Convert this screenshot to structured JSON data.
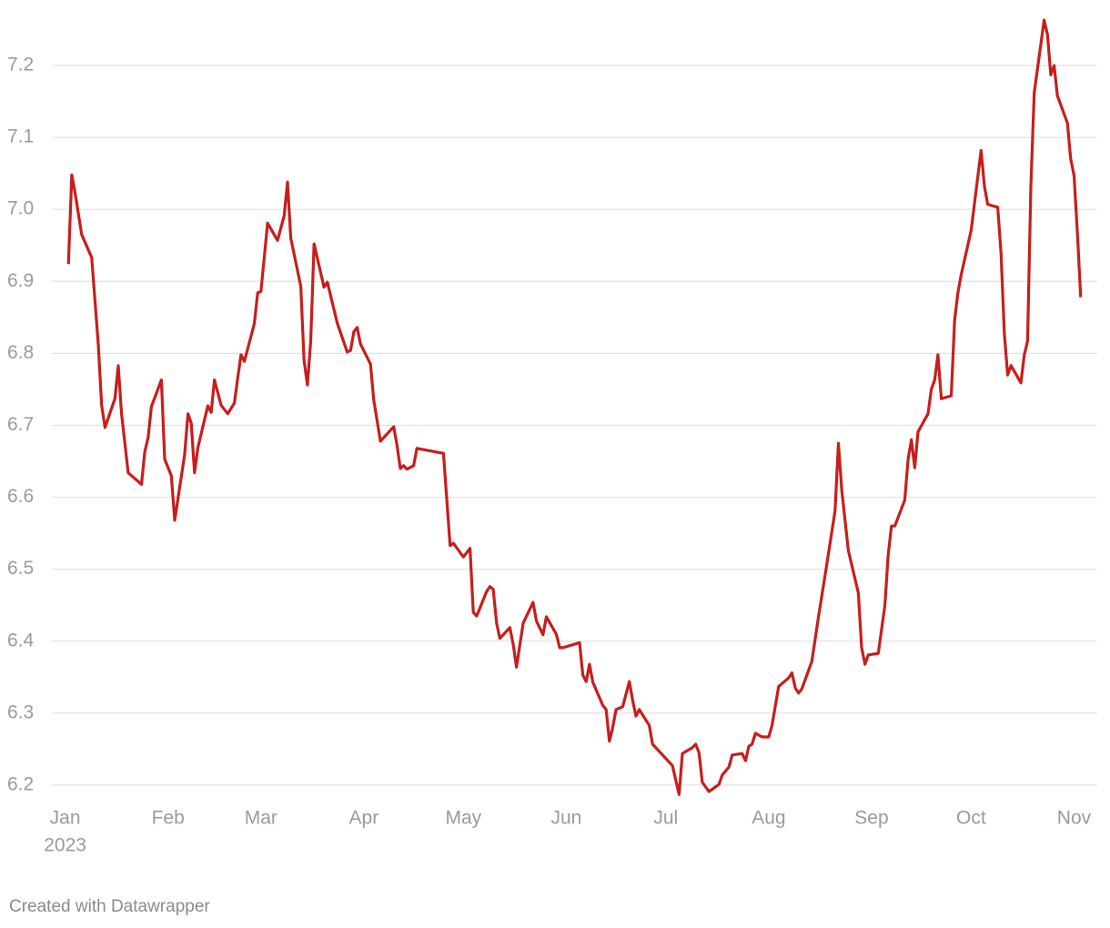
{
  "chart_data": {
    "type": "line",
    "x": [
      1,
      2,
      3,
      5,
      8,
      10,
      11,
      12,
      15,
      16,
      17,
      19,
      23,
      24,
      25,
      26,
      29,
      30,
      32,
      33,
      36,
      37,
      38,
      39,
      40,
      43,
      44,
      45,
      47,
      49,
      51,
      52,
      53,
      54,
      57,
      58,
      59,
      61,
      64,
      66,
      67,
      68,
      71,
      72,
      73,
      74,
      75,
      78,
      79,
      82,
      85,
      86,
      87,
      88,
      89,
      92,
      93,
      95,
      99,
      100,
      101,
      102,
      103,
      105,
      106,
      114,
      116,
      117,
      120,
      122,
      123,
      124,
      127,
      128,
      129,
      130,
      131,
      134,
      135,
      136,
      138,
      141,
      142,
      144,
      145,
      148,
      149,
      150,
      155,
      156,
      157,
      158,
      159,
      162,
      163,
      164,
      165,
      166,
      168,
      170,
      171,
      172,
      173,
      176,
      177,
      183,
      185,
      186,
      189,
      190,
      191,
      192,
      194,
      197,
      198,
      200,
      201,
      204,
      205,
      206,
      207,
      208,
      210,
      212,
      213,
      215,
      218,
      219,
      220,
      221,
      222,
      225,
      227,
      229,
      232,
      233,
      234,
      236,
      239,
      240,
      241,
      242,
      245,
      247,
      248,
      249,
      250,
      253,
      254,
      255,
      256,
      257,
      260,
      261,
      262,
      263,
      264,
      267,
      268,
      269,
      270,
      273,
      276,
      277,
      278,
      281,
      282,
      283,
      284,
      285,
      288,
      289,
      290,
      291,
      292,
      295,
      296,
      297,
      298,
      299,
      302,
      303,
      304,
      305,
      306
    ],
    "series": [
      {
        "color": "#c71e1d",
        "values": [
          6.924,
          7.048,
          7.023,
          6.965,
          6.933,
          6.811,
          6.728,
          6.697,
          6.737,
          6.783,
          6.716,
          6.634,
          6.618,
          6.663,
          6.683,
          6.726,
          6.763,
          6.653,
          6.63,
          6.568,
          6.659,
          6.716,
          6.703,
          6.634,
          6.669,
          6.727,
          6.718,
          6.763,
          6.728,
          6.716,
          6.731,
          6.766,
          6.798,
          6.789,
          6.841,
          6.884,
          6.886,
          6.981,
          6.957,
          6.991,
          7.038,
          6.96,
          6.893,
          6.79,
          6.756,
          6.817,
          6.952,
          6.892,
          6.899,
          6.842,
          6.802,
          6.804,
          6.83,
          6.836,
          6.813,
          6.785,
          6.735,
          6.678,
          6.698,
          6.672,
          6.64,
          6.644,
          6.639,
          6.644,
          6.668,
          6.661,
          6.533,
          6.536,
          6.517,
          6.529,
          6.44,
          6.435,
          6.469,
          6.476,
          6.472,
          6.425,
          6.404,
          6.419,
          6.396,
          6.364,
          6.425,
          6.454,
          6.428,
          6.409,
          6.434,
          6.41,
          6.391,
          6.391,
          6.398,
          6.353,
          6.344,
          6.368,
          6.343,
          6.311,
          6.305,
          6.261,
          6.28,
          6.305,
          6.309,
          6.344,
          6.318,
          6.296,
          6.305,
          6.283,
          6.257,
          6.227,
          6.187,
          6.244,
          6.252,
          6.257,
          6.245,
          6.204,
          6.191,
          6.201,
          6.214,
          6.225,
          6.242,
          6.244,
          6.234,
          6.254,
          6.257,
          6.272,
          6.267,
          6.267,
          6.283,
          6.337,
          6.349,
          6.356,
          6.335,
          6.328,
          6.334,
          6.372,
          6.434,
          6.492,
          6.581,
          6.675,
          6.611,
          6.526,
          6.467,
          6.391,
          6.368,
          6.381,
          6.383,
          6.45,
          6.52,
          6.56,
          6.56,
          6.596,
          6.653,
          6.68,
          6.641,
          6.691,
          6.716,
          6.75,
          6.763,
          6.798,
          6.737,
          6.741,
          6.846,
          6.884,
          6.909,
          6.971,
          7.082,
          7.032,
          7.007,
          7.003,
          6.94,
          6.827,
          6.77,
          6.783,
          6.759,
          6.798,
          6.817,
          7.032,
          7.162,
          7.263,
          7.243,
          7.187,
          7.2,
          7.158,
          7.12,
          7.07,
          7.047,
          6.969,
          6.878
        ]
      }
    ],
    "xlim": [
      -4,
      311
    ],
    "xticks": [
      {
        "value": 0,
        "label": "Jan"
      },
      {
        "value": 31,
        "label": "Feb"
      },
      {
        "value": 59,
        "label": "Mar"
      },
      {
        "value": 90,
        "label": "Apr"
      },
      {
        "value": 120,
        "label": "May"
      },
      {
        "value": 151,
        "label": "Jun"
      },
      {
        "value": 181,
        "label": "Jul"
      },
      {
        "value": 212,
        "label": "Aug"
      },
      {
        "value": 243,
        "label": "Sep"
      },
      {
        "value": 273,
        "label": "Oct"
      },
      {
        "value": 304,
        "label": "Nov"
      }
    ],
    "year": "2023",
    "ylim": [
      6.18,
      7.28
    ],
    "yticks": [
      6.2,
      6.3,
      6.4,
      6.5,
      6.6,
      6.7,
      6.8,
      6.9,
      {
        "value": 7,
        "label": "7.0"
      },
      7.1,
      7.2
    ],
    "grid": true,
    "credit": "Created with Datawrapper"
  }
}
